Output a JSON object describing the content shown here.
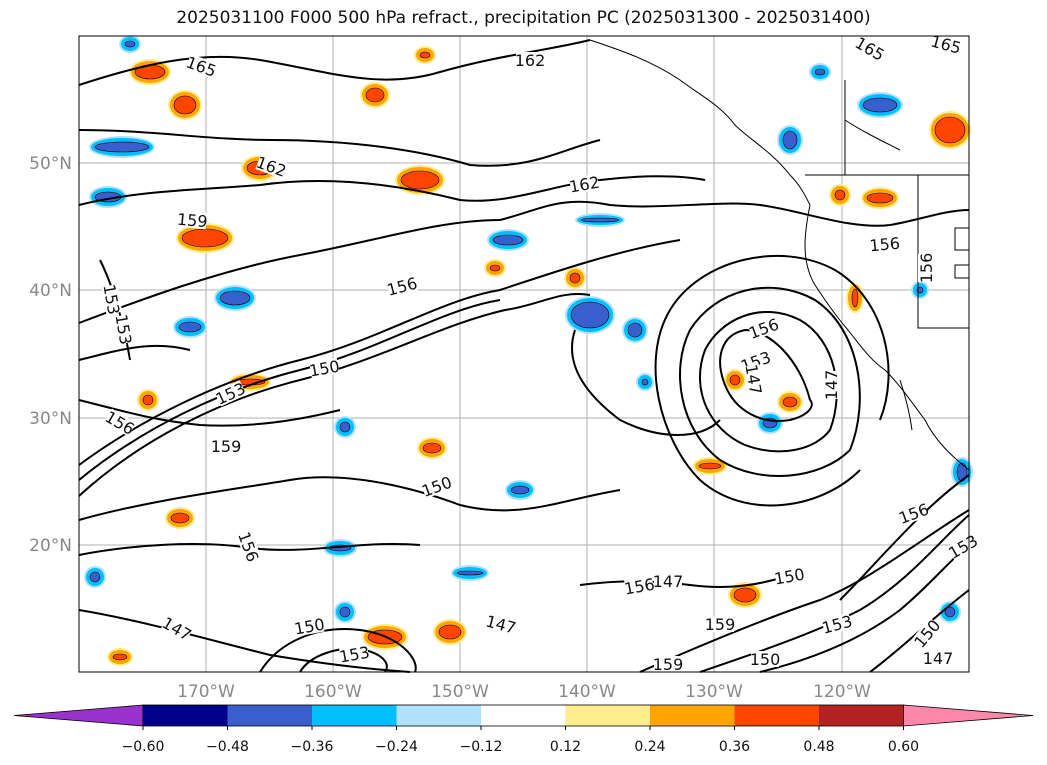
{
  "title": "2025031100 F000 500 hPa refract., precipitation PC (2025031300 - 2025031400)",
  "axes": {
    "lat_labels": [
      "50°N",
      "40°N",
      "30°N",
      "20°N"
    ],
    "lon_labels": [
      "170°W",
      "160°W",
      "150°W",
      "140°W",
      "130°W",
      "120°W"
    ]
  },
  "colorbar": {
    "ticks": [
      "−0.60",
      "−0.48",
      "−0.36",
      "−0.24",
      "−0.12",
      "0.12",
      "0.24",
      "0.36",
      "0.48",
      "0.60"
    ],
    "colors": [
      "#9932cc",
      "#00008b",
      "#3a5fcd",
      "#00bfff",
      "#b0e2ff",
      "#ffffff",
      "#ffec8b",
      "#ffa500",
      "#ff4500",
      "#b22222",
      "#ff88aa"
    ]
  },
  "contour_labels": [
    "165",
    "162",
    "162",
    "162",
    "159",
    "156",
    "156",
    "156",
    "153",
    "153",
    "150",
    "150",
    "147",
    "147",
    "147",
    "159",
    "156",
    "153",
    "150",
    "165",
    "165",
    "156",
    "159",
    "150",
    "153",
    "156",
    "153",
    "156",
    "150",
    "147",
    "147",
    "159",
    "147",
    "153",
    "150",
    "156",
    "153"
  ]
}
